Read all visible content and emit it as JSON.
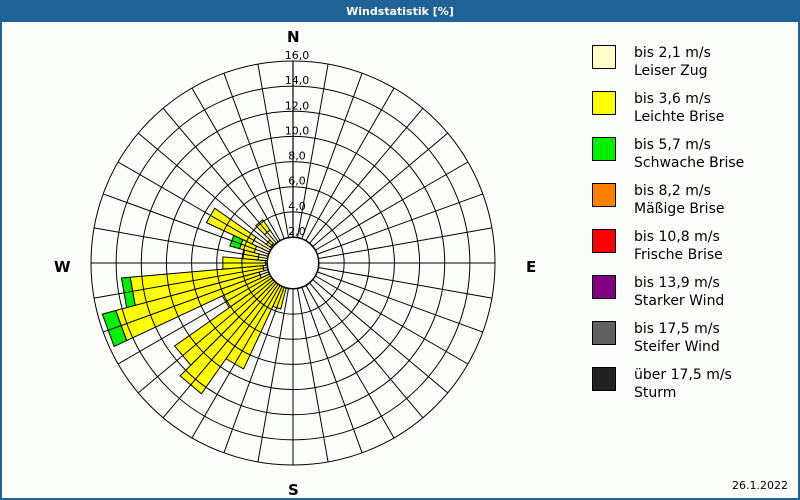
{
  "window": {
    "title": "Windstatistik [%]",
    "date": "26.1.2022"
  },
  "compass": {
    "n": "N",
    "e": "E",
    "s": "S",
    "w": "W"
  },
  "legend": [
    {
      "range": "bis 2,1 m/s",
      "name": "Leiser Zug",
      "color": "#ffffc8"
    },
    {
      "range": "bis 3,6 m/s",
      "name": "Leichte Brise",
      "color": "#ffff00"
    },
    {
      "range": "bis 5,7 m/s",
      "name": "Schwache Brise",
      "color": "#00ee00"
    },
    {
      "range": "bis 8,2 m/s",
      "name": "Mäßige Brise",
      "color": "#ff8000"
    },
    {
      "range": "bis 10,8 m/s",
      "name": "Frische Brise",
      "color": "#ff0000"
    },
    {
      "range": "bis 13,9 m/s",
      "name": "Starker Wind",
      "color": "#800080"
    },
    {
      "range": "bis 17,5 m/s",
      "name": "Steifer Wind",
      "color": "#606060"
    },
    {
      "range": "über 17,5 m/s",
      "name": "Sturm",
      "color": "#202020"
    }
  ],
  "chart_data": {
    "type": "wind-rose",
    "title": "Windstatistik [%]",
    "radial_ticks": [
      "2,0",
      "4,0",
      "6,0",
      "8,0",
      "10,0",
      "12,0",
      "14,0",
      "16,0"
    ],
    "radial_range": [
      2,
      16
    ],
    "sector_width_deg": 10,
    "series": [
      "bis 2,1 m/s",
      "bis 3,6 m/s",
      "bis 5,7 m/s"
    ],
    "sectors": [
      {
        "dir": 200,
        "cum": [
          1.6,
          3.8,
          3.8
        ]
      },
      {
        "dir": 210,
        "cum": [
          1.6,
          9.3,
          9.3
        ]
      },
      {
        "dir": 220,
        "cum": [
          1.6,
          12.7,
          12.7
        ]
      },
      {
        "dir": 230,
        "cum": [
          1.6,
          11.5,
          11.5
        ]
      },
      {
        "dir": 240,
        "cum": [
          1.6,
          6.2,
          6.2
        ]
      },
      {
        "dir": 250,
        "cum": [
          2.8,
          14.6,
          15.7
        ]
      },
      {
        "dir": 260,
        "cum": [
          2.4,
          13.0,
          13.7
        ]
      },
      {
        "dir": 270,
        "cum": [
          2.2,
          5.6,
          5.6
        ]
      },
      {
        "dir": 280,
        "cum": [
          2.8,
          4.0,
          4.0
        ]
      },
      {
        "dir": 290,
        "cum": [
          3.2,
          4.4,
          5.2
        ]
      },
      {
        "dir": 300,
        "cum": [
          3.6,
          7.6,
          7.6
        ]
      },
      {
        "dir": 310,
        "cum": [
          2.2,
          2.6,
          2.6
        ]
      },
      {
        "dir": 320,
        "cum": [
          3.2,
          4.2,
          4.2
        ]
      }
    ]
  }
}
